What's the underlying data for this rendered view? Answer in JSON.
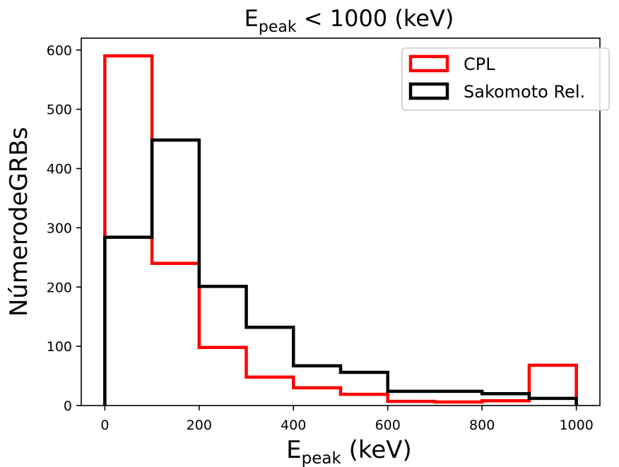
{
  "chart_data": {
    "type": "histogram",
    "title": {
      "main": "E",
      "sub": "peak",
      "rest": " < 1000 (keV)"
    },
    "xlabel": {
      "main": "E",
      "sub": "peak",
      "rest": " (keV)"
    },
    "ylabel": "NúmerodeGRBs",
    "xlim": [
      -50,
      1050
    ],
    "ylim": [
      0,
      620
    ],
    "xticks": [
      0,
      200,
      400,
      600,
      800,
      1000
    ],
    "yticks": [
      0,
      100,
      200,
      300,
      400,
      500,
      600
    ],
    "bin_edges": [
      0,
      100,
      200,
      300,
      400,
      500,
      600,
      700,
      800,
      900,
      1000
    ],
    "series": [
      {
        "name": "CPL",
        "color": "#ff0000",
        "values": [
          590,
          240,
          98,
          48,
          30,
          19,
          7,
          6,
          8,
          68
        ]
      },
      {
        "name": "Sakomoto Rel.",
        "color": "#000000",
        "values": [
          284,
          448,
          201,
          132,
          67,
          56,
          24,
          24,
          20,
          12
        ]
      }
    ],
    "legend_position": "top-right",
    "grid": false
  }
}
